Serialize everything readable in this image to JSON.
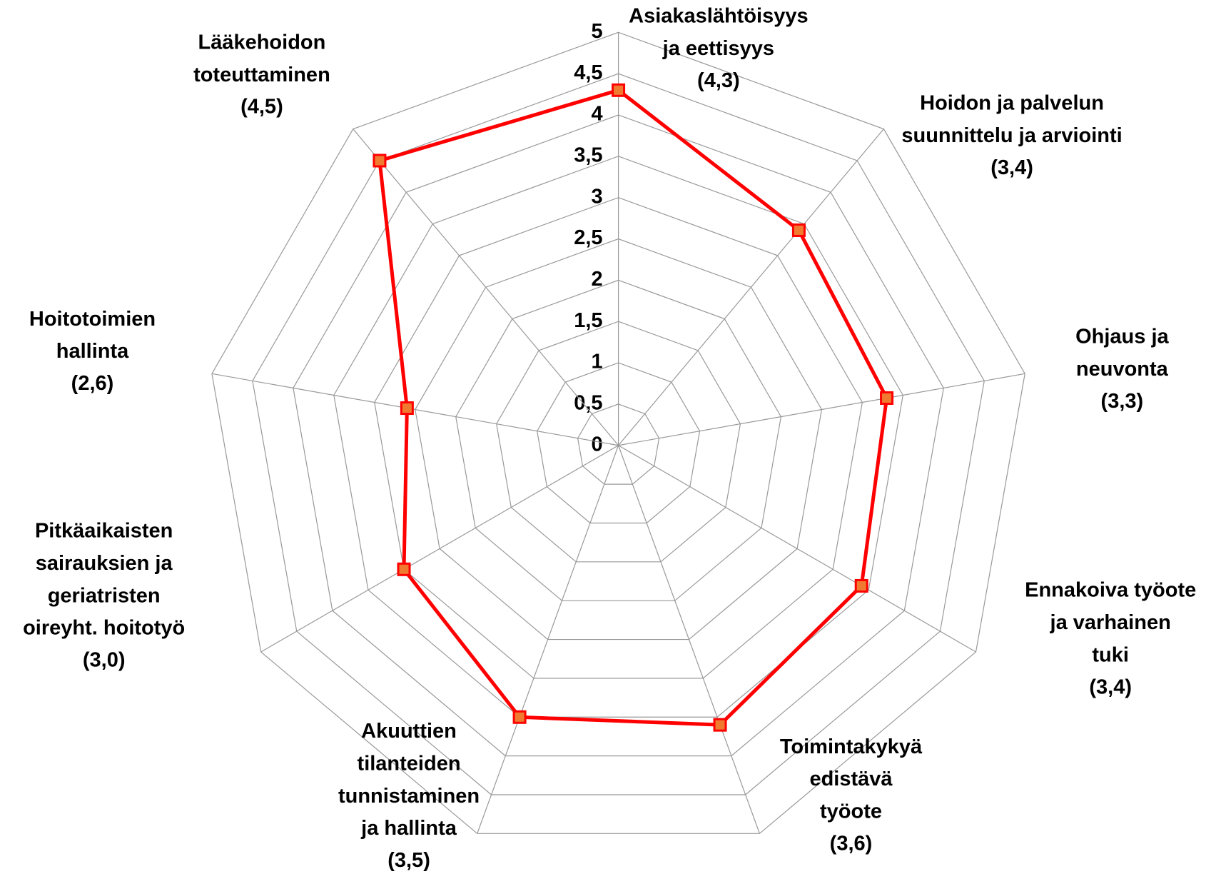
{
  "chart_data": {
    "type": "radar",
    "categories": [
      "Asiakaslähtöisyys\nja eettisyys",
      "Hoidon ja palvelun\nsuunnittelu ja arviointi",
      "Ohjaus ja\nneuvonta",
      "Ennakoiva työote\nja varhainen\ntuki",
      "Toimintakykyä\nedistävä\ntyöote",
      "Akuuttien\ntilanteiden\ntunnistaminen\nja hallinta",
      "Pitkäaikaisten\nsairauksien ja\ngeriatristen\noireyht. hoitotyö",
      "Hoitotoimien\nhallinta",
      "Lääkehoidon\ntoteuttaminen"
    ],
    "series": [
      {
        "color": "#ff0000",
        "marker_color": "#f07b30",
        "values": [
          4.3,
          3.4,
          3.3,
          3.4,
          3.6,
          3.5,
          3.0,
          2.6,
          4.5
        ],
        "value_labels": [
          "(4,3)",
          "(3,4)",
          "(3,3)",
          "(3,4)",
          "(3,6)",
          "(3,5)",
          "(3,0)",
          "(2,6)",
          "(4,5)"
        ]
      }
    ],
    "ylim": [
      0,
      5
    ],
    "yticks": [
      0,
      {
        "value": 0.5,
        "label": "0,5"
      },
      1,
      {
        "value": 1.5,
        "label": "1,5"
      },
      2,
      {
        "value": 2.5,
        "label": "2,5"
      },
      3,
      {
        "value": 3.5,
        "label": "3,5"
      },
      4,
      {
        "value": 4.5,
        "label": "4,5"
      },
      5
    ],
    "grid": true
  }
}
